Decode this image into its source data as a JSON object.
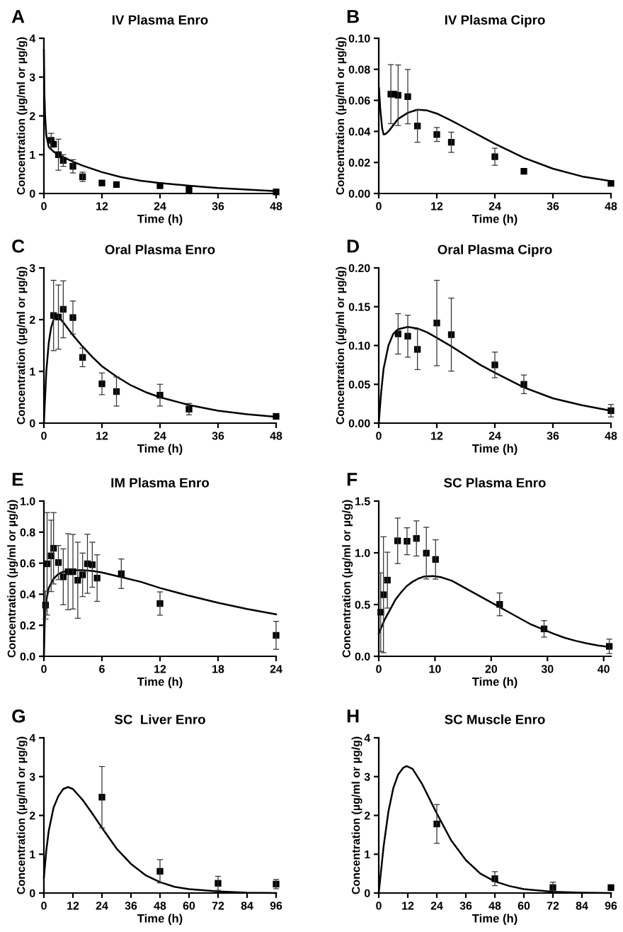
{
  "chart_data": [
    {
      "type": "scatter",
      "title": "IV Plasma Enro",
      "xlabel": "Time (h)",
      "ylabel": "Concentration (µg/ml or µg/g)",
      "annotations": [
        "A"
      ],
      "xlim": [
        0,
        48
      ],
      "xticks": [
        0,
        12,
        24,
        36,
        48
      ],
      "ylim": [
        0,
        4
      ],
      "yticks": [
        0,
        1,
        2,
        3,
        4
      ],
      "series": [
        {
          "type": "scatter",
          "marker": "square",
          "color": "#000000",
          "x": [
            1.5,
            2,
            3,
            4,
            6,
            8,
            12,
            15,
            24,
            30,
            48
          ],
          "values": [
            1.37,
            1.27,
            1.0,
            0.85,
            0.7,
            0.43,
            0.27,
            0.23,
            0.2,
            0.1,
            0.04
          ],
          "errors": [
            0.18,
            null,
            0.4,
            0.15,
            0.17,
            0.12,
            null,
            null,
            null,
            null,
            null
          ]
        },
        {
          "type": "line",
          "color": "#000000",
          "x": [
            0,
            0.1,
            0.25,
            0.5,
            1,
            2,
            3,
            4,
            6,
            8,
            12,
            16,
            20,
            24,
            30,
            36,
            42,
            48
          ],
          "values": [
            3.7,
            2.6,
            2.0,
            1.5,
            1.2,
            1.08,
            1.0,
            0.94,
            0.82,
            0.72,
            0.55,
            0.42,
            0.33,
            0.27,
            0.2,
            0.14,
            0.1,
            0.06
          ]
        }
      ]
    },
    {
      "type": "scatter",
      "title": "IV Plasma Cipro",
      "xlabel": "Time (h)",
      "ylabel": "Concentration (µg/ml or µg/g)",
      "annotations": [
        "B"
      ],
      "xlim": [
        0,
        48
      ],
      "xticks": [
        0,
        12,
        24,
        36,
        48
      ],
      "ylim": [
        0,
        0.1
      ],
      "yticks": [
        {
          "value": 0,
          "label": "0.00"
        },
        {
          "value": 0.02,
          "label": "0.02"
        },
        {
          "value": 0.04,
          "label": "0.04"
        },
        {
          "value": 0.06,
          "label": "0.06"
        },
        {
          "value": 0.08,
          "label": "0.08"
        },
        {
          "value": 0.1,
          "label": "0.10"
        }
      ],
      "series": [
        {
          "type": "scatter",
          "marker": "square",
          "color": "#000000",
          "x": [
            2.5,
            3.1,
            4,
            6,
            8,
            12,
            15,
            24,
            30,
            48
          ],
          "values": [
            0.064,
            0.064,
            0.0633,
            0.0624,
            0.0435,
            0.038,
            0.033,
            0.0237,
            0.0143,
            0.0065
          ],
          "errors": [
            0.019,
            null,
            0.0195,
            0.0175,
            0.0105,
            0.0045,
            0.0065,
            0.0055,
            null,
            null
          ]
        },
        {
          "type": "line",
          "color": "#000000",
          "x": [
            0.05,
            0.3,
            0.7,
            1,
            1.5,
            2,
            3,
            4,
            6,
            8,
            10,
            12,
            15,
            18,
            21,
            24,
            30,
            36,
            42,
            48
          ],
          "values": [
            0.068,
            0.055,
            0.042,
            0.038,
            0.0385,
            0.04,
            0.044,
            0.048,
            0.052,
            0.054,
            0.0535,
            0.0515,
            0.047,
            0.042,
            0.037,
            0.032,
            0.023,
            0.016,
            0.011,
            0.008
          ]
        }
      ]
    },
    {
      "type": "scatter",
      "title": "Oral Plasma Enro",
      "xlabel": "Time (h)",
      "ylabel": "Concentration (µg/ml or µg/g)",
      "annotations": [
        "C"
      ],
      "xlim": [
        0,
        48
      ],
      "xticks": [
        0,
        12,
        24,
        36,
        48
      ],
      "ylim": [
        0,
        3
      ],
      "yticks": [
        0,
        1,
        2,
        3
      ],
      "series": [
        {
          "type": "scatter",
          "marker": "square",
          "color": "#000000",
          "x": [
            2,
            3,
            4,
            6,
            8,
            12,
            15,
            24,
            30,
            48
          ],
          "values": [
            2.08,
            2.05,
            2.2,
            2.04,
            1.27,
            0.76,
            0.61,
            0.54,
            0.27,
            0.13
          ],
          "errors": [
            0.68,
            0.62,
            0.55,
            0.32,
            0.18,
            0.21,
            0.28,
            0.21,
            0.11,
            null
          ]
        },
        {
          "type": "line",
          "color": "#000000",
          "x": [
            0,
            0.5,
            1,
            1.5,
            2,
            2.5,
            3,
            4,
            6,
            8,
            10,
            12,
            15,
            18,
            21,
            24,
            30,
            36,
            42,
            48
          ],
          "values": [
            0,
            1.0,
            1.55,
            1.85,
            2.0,
            2.05,
            2.05,
            1.95,
            1.7,
            1.48,
            1.28,
            1.1,
            0.9,
            0.73,
            0.6,
            0.5,
            0.35,
            0.24,
            0.17,
            0.12
          ]
        }
      ]
    },
    {
      "type": "scatter",
      "title": "Oral Plasma Cipro",
      "xlabel": "Time (h)",
      "ylabel": "Concentration (µg/ml or µg/g)",
      "annotations": [
        "D"
      ],
      "xlim": [
        0,
        48
      ],
      "xticks": [
        0,
        12,
        24,
        36,
        48
      ],
      "ylim": [
        0,
        0.2
      ],
      "yticks": [
        {
          "value": 0,
          "label": "0.00"
        },
        {
          "value": 0.05,
          "label": "0.05"
        },
        {
          "value": 0.1,
          "label": "0.10"
        },
        {
          "value": 0.15,
          "label": "0.15"
        },
        {
          "value": 0.2,
          "label": "0.20"
        }
      ],
      "series": [
        {
          "type": "scatter",
          "marker": "square",
          "color": "#000000",
          "x": [
            4,
            6,
            8,
            12,
            15,
            24,
            30,
            48
          ],
          "values": [
            0.115,
            0.112,
            0.095,
            0.129,
            0.114,
            0.075,
            0.05,
            0.016
          ],
          "errors": [
            0.026,
            0.027,
            0.026,
            0.055,
            0.047,
            0.0165,
            0.012,
            0.008
          ]
        },
        {
          "type": "line",
          "color": "#000000",
          "x": [
            0,
            0.5,
            1,
            2,
            3,
            4,
            6,
            8,
            10,
            12,
            15,
            18,
            21,
            24,
            30,
            36,
            42,
            48
          ],
          "values": [
            0,
            0.04,
            0.07,
            0.1,
            0.115,
            0.121,
            0.124,
            0.122,
            0.117,
            0.11,
            0.099,
            0.087,
            0.075,
            0.065,
            0.046,
            0.032,
            0.023,
            0.016
          ]
        }
      ]
    },
    {
      "type": "scatter",
      "title": "IM Plasma Enro",
      "xlabel": "Time (h)",
      "ylabel": "Concentration (µg/ml or µg/g)",
      "annotations": [
        "E"
      ],
      "xlim": [
        0,
        24
      ],
      "xticks": [
        0,
        6,
        12,
        18,
        24
      ],
      "ylim": [
        0,
        1
      ],
      "yticks": [
        {
          "value": 0,
          "label": "0.0"
        },
        {
          "value": 0.2,
          "label": "0.2"
        },
        {
          "value": 0.4,
          "label": "0.4"
        },
        {
          "value": 0.6,
          "label": "0.6"
        },
        {
          "value": 0.8,
          "label": "0.8"
        },
        {
          "value": 1,
          "label": "1.0"
        }
      ],
      "series": [
        {
          "type": "scatter",
          "marker": "square",
          "color": "#000000",
          "x": [
            0.17,
            0.33,
            0.75,
            1,
            1.5,
            2,
            2.5,
            3,
            3.5,
            4,
            4.5,
            5,
            5.5,
            8,
            12,
            24
          ],
          "values": [
            0.33,
            0.596,
            0.647,
            0.696,
            0.604,
            0.512,
            0.545,
            0.545,
            0.49,
            0.525,
            0.596,
            0.59,
            0.504,
            0.532,
            0.34,
            0.135
          ],
          "errors": [
            0.09,
            0.33,
            0.23,
            0.23,
            0.11,
            0.18,
            0.245,
            0.24,
            0.245,
            0.14,
            0.19,
            0.145,
            0.15,
            0.095,
            0.075,
            0.09
          ]
        },
        {
          "type": "line",
          "color": "#000000",
          "x": [
            0,
            0.1,
            0.25,
            0.5,
            1,
            1.5,
            2,
            3,
            4,
            5,
            6,
            8,
            10,
            12,
            15,
            18,
            21,
            24
          ],
          "values": [
            0,
            0.25,
            0.36,
            0.44,
            0.5,
            0.53,
            0.545,
            0.555,
            0.555,
            0.55,
            0.54,
            0.51,
            0.48,
            0.44,
            0.39,
            0.345,
            0.305,
            0.27
          ]
        }
      ]
    },
    {
      "type": "scatter",
      "title": "SC Plasma Enro",
      "xlabel": "Time (h)",
      "ylabel": "Concentration (µg/ml or µg/g)",
      "annotations": [
        "F"
      ],
      "xlim": [
        0,
        41.3
      ],
      "xticks": [
        0,
        10,
        20,
        30,
        40
      ],
      "ylim": [
        0,
        1.5
      ],
      "yticks": [
        {
          "value": 0,
          "label": "0.0"
        },
        {
          "value": 0.5,
          "label": "0.5"
        },
        {
          "value": 1,
          "label": "1.0"
        },
        {
          "value": 1.5,
          "label": "1.5"
        }
      ],
      "series": [
        {
          "type": "scatter",
          "marker": "square",
          "color": "#000000",
          "x": [
            0.35,
            0.84,
            1.54,
            3.36,
            5.03,
            6.7,
            8.46,
            10.1,
            21.5,
            29.4,
            41.0
          ],
          "values": [
            0.426,
            0.595,
            0.736,
            1.116,
            1.112,
            1.139,
            0.997,
            0.936,
            0.502,
            0.265,
            0.096
          ],
          "errors": [
            0.38,
            0.56,
            0.27,
            0.22,
            0.13,
            0.17,
            0.25,
            0.19,
            0.11,
            0.08,
            0.07
          ]
        },
        {
          "type": "line",
          "color": "#000000",
          "x": [
            0,
            1,
            2,
            3,
            4,
            5,
            6,
            7,
            8,
            9.6,
            11,
            13,
            15,
            17,
            19,
            21,
            23,
            25,
            27,
            29,
            31,
            33,
            35,
            37,
            39,
            41
          ],
          "values": [
            0.22,
            0.35,
            0.45,
            0.55,
            0.62,
            0.68,
            0.72,
            0.75,
            0.77,
            0.775,
            0.765,
            0.73,
            0.67,
            0.61,
            0.55,
            0.49,
            0.43,
            0.37,
            0.31,
            0.265,
            0.22,
            0.18,
            0.15,
            0.125,
            0.105,
            0.09
          ]
        }
      ]
    },
    {
      "type": "scatter",
      "title": "SC  Liver Enro",
      "xlabel": "Time (h)",
      "ylabel": "Concentration (µg/ml or µg/g)",
      "annotations": [
        "G"
      ],
      "xlim": [
        0,
        96
      ],
      "xticks": [
        0,
        12,
        24,
        36,
        48,
        60,
        72,
        84,
        96
      ],
      "ylim": [
        0,
        4
      ],
      "yticks": [
        0,
        1,
        2,
        3,
        4
      ],
      "series": [
        {
          "type": "scatter",
          "marker": "square",
          "color": "#000000",
          "x": [
            24,
            48,
            72,
            96
          ],
          "values": [
            2.47,
            0.56,
            0.25,
            0.23
          ],
          "errors": [
            0.79,
            0.3,
            0.18,
            0.12
          ]
        },
        {
          "type": "line",
          "color": "#000000",
          "x": [
            0,
            1,
            2,
            4,
            6,
            8,
            10,
            12,
            16,
            20,
            24,
            30,
            36,
            42,
            48,
            54,
            60,
            72,
            84,
            96
          ],
          "values": [
            0.4,
            1.1,
            1.6,
            2.2,
            2.5,
            2.68,
            2.73,
            2.68,
            2.4,
            2.05,
            1.68,
            1.15,
            0.75,
            0.46,
            0.28,
            0.16,
            0.1,
            0.04,
            0.01,
            0
          ]
        }
      ]
    },
    {
      "type": "scatter",
      "title": "SC Muscle Enro",
      "xlabel": "Time (h)",
      "ylabel": "Concentration (µg/ml or µg/g)",
      "annotations": [
        "H"
      ],
      "xlim": [
        0,
        96
      ],
      "xticks": [
        0,
        12,
        24,
        36,
        48,
        60,
        72,
        84,
        96
      ],
      "ylim": [
        0,
        4
      ],
      "yticks": [
        0,
        1,
        2,
        3,
        4
      ],
      "series": [
        {
          "type": "scatter",
          "marker": "square",
          "color": "#000000",
          "x": [
            24,
            48,
            72,
            96
          ],
          "values": [
            1.78,
            0.37,
            0.14,
            0.14
          ],
          "errors": [
            0.5,
            0.18,
            [
              0.06,
              0.28
            ],
            null
          ]
        },
        {
          "type": "line",
          "color": "#000000",
          "x": [
            0,
            1,
            2,
            4,
            6,
            8,
            10,
            11.5,
            14,
            18,
            22,
            24,
            30,
            36,
            42,
            48,
            54,
            60,
            72,
            84,
            96
          ],
          "values": [
            0,
            0.6,
            1.2,
            2.1,
            2.7,
            3.05,
            3.22,
            3.27,
            3.2,
            2.8,
            2.3,
            2.05,
            1.35,
            0.85,
            0.5,
            0.3,
            0.18,
            0.1,
            0.03,
            0.01,
            0
          ]
        }
      ]
    }
  ]
}
